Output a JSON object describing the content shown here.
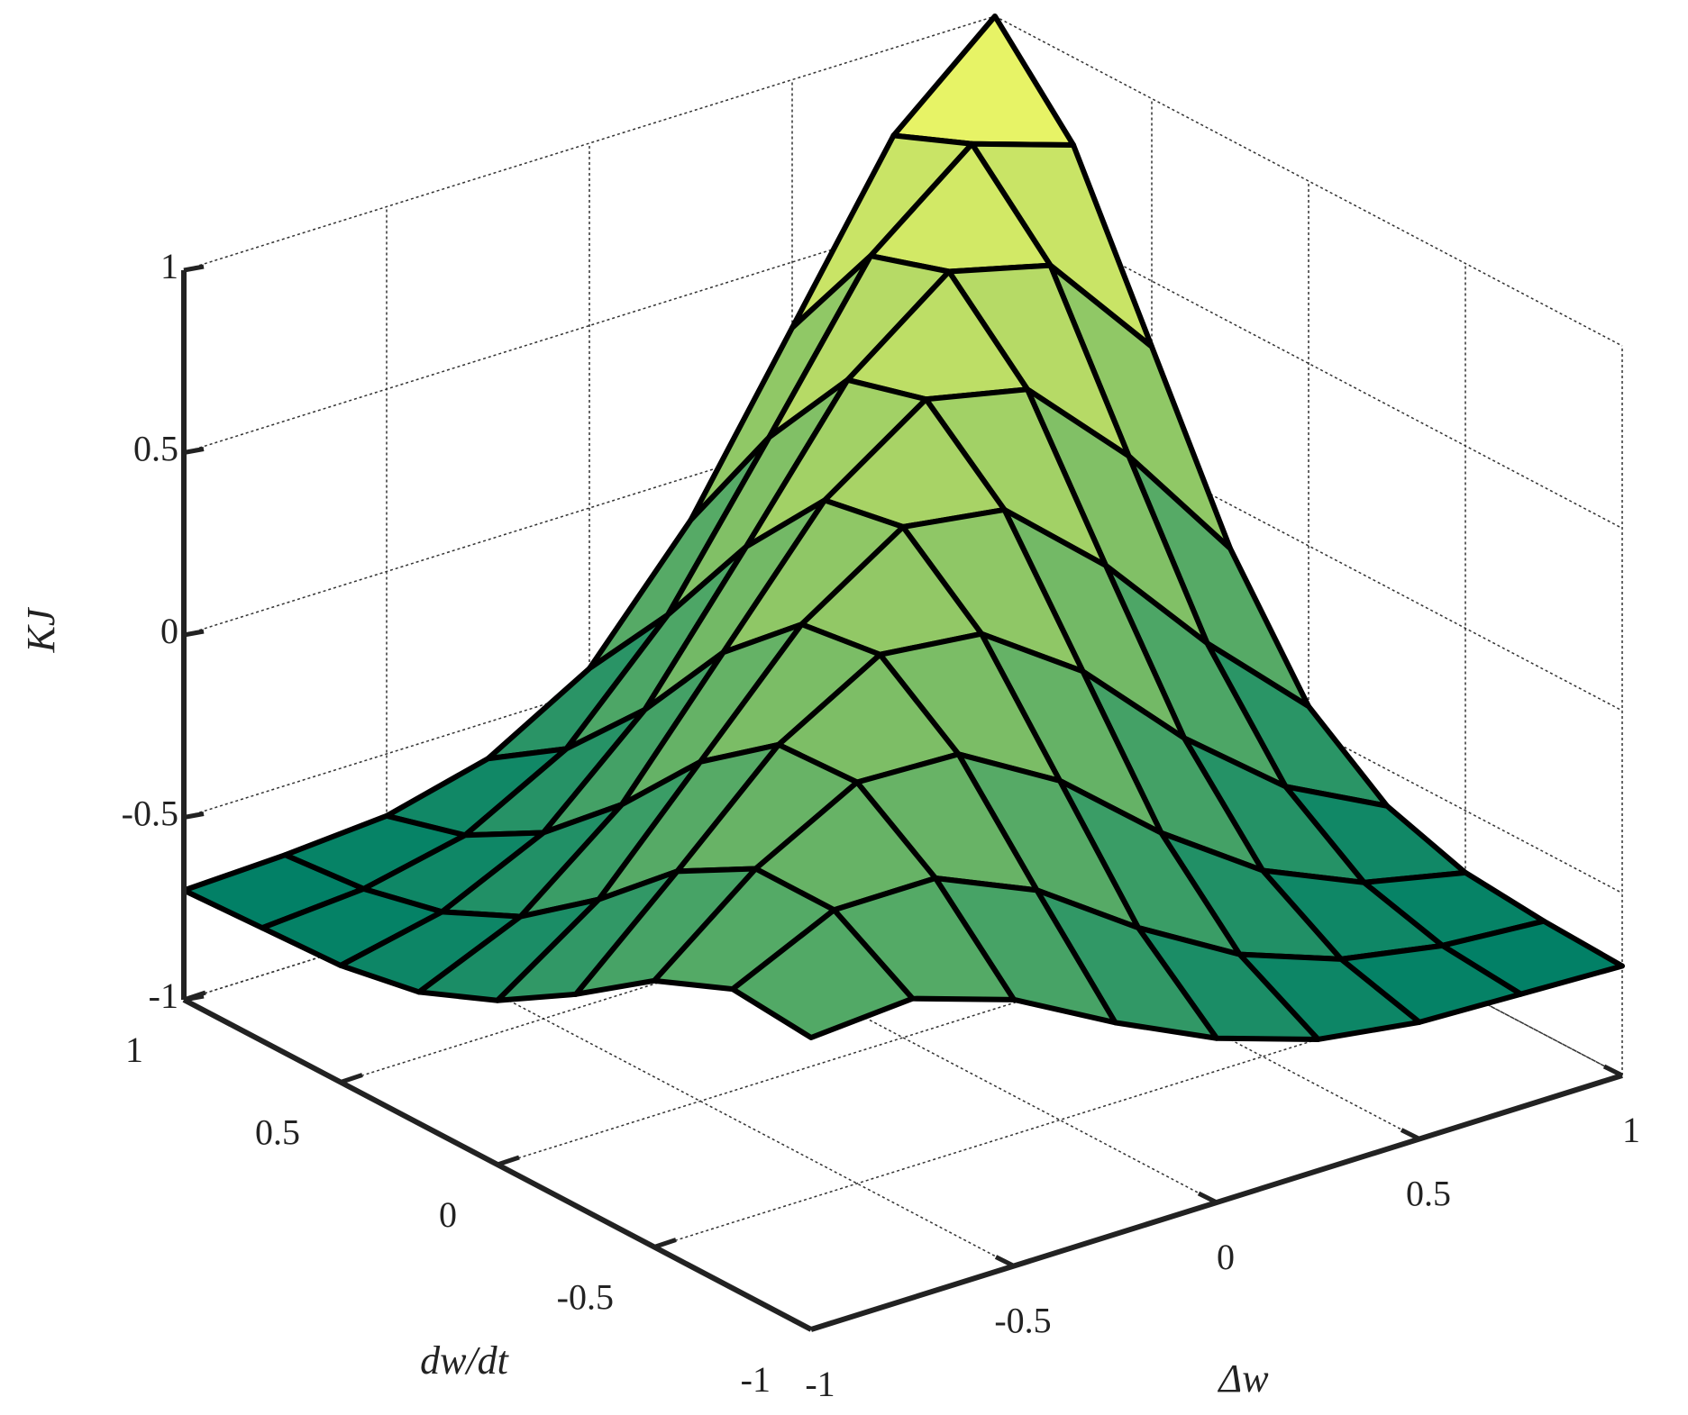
{
  "chart_data": {
    "type": "surface",
    "colormap": "summer",
    "grid": true,
    "xlabel": "Δw",
    "ylabel": "dw/dt",
    "zlabel": "KJ",
    "x": [
      -1,
      -0.75,
      -0.5,
      -0.25,
      0,
      0.25,
      0.5,
      0.75,
      1
    ],
    "y": [
      -1,
      -0.75,
      -0.5,
      -0.25,
      0,
      0.25,
      0.5,
      0.75,
      1
    ],
    "z": [
      [
        -0.2,
        -0.18,
        -0.27,
        -0.42,
        -0.55,
        -0.64,
        -0.68,
        -0.69,
        -0.7
      ],
      [
        -0.18,
        -0.05,
        -0.05,
        -0.17,
        -0.36,
        -0.52,
        -0.62,
        -0.67,
        -0.69
      ],
      [
        -0.27,
        -0.05,
        0.1,
        0.09,
        -0.07,
        -0.3,
        -0.49,
        -0.61,
        -0.67
      ],
      [
        -0.42,
        -0.17,
        0.09,
        0.25,
        0.22,
        0.03,
        -0.24,
        -0.46,
        -0.6
      ],
      [
        -0.55,
        -0.36,
        -0.07,
        0.22,
        0.4,
        0.36,
        0.12,
        -0.18,
        -0.44
      ],
      [
        -0.64,
        -0.52,
        -0.3,
        0.03,
        0.36,
        0.55,
        0.49,
        0.22,
        -0.12
      ],
      [
        -0.68,
        -0.62,
        -0.49,
        -0.24,
        0.12,
        0.49,
        0.7,
        0.63,
        0.32
      ],
      [
        -0.69,
        -0.67,
        -0.61,
        -0.46,
        -0.18,
        0.22,
        0.63,
        0.85,
        0.76
      ],
      [
        -0.7,
        -0.69,
        -0.67,
        -0.6,
        -0.44,
        -0.12,
        0.32,
        0.76,
        1
      ]
    ],
    "xlim": [
      -1,
      1
    ],
    "xticks": [
      -1,
      -0.5,
      0,
      0.5,
      1
    ],
    "ylim": [
      -1,
      1
    ],
    "yticks": [
      -1,
      -0.5,
      0,
      0.5,
      1
    ],
    "zlim": [
      -1,
      1
    ],
    "zticks": [
      -1,
      -0.5,
      0,
      0.5,
      1
    ]
  }
}
